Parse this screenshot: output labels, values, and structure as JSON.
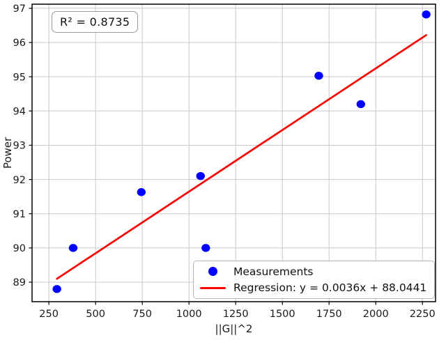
{
  "figure": {
    "background": "#ffffff"
  },
  "chart_data": {
    "type": "scatter",
    "title": "",
    "xlabel": "||G||^2",
    "ylabel": "Power",
    "xlim": [
      160,
      2320
    ],
    "ylim": [
      88.43,
      97.12
    ],
    "xticks": [
      250,
      500,
      750,
      1000,
      1250,
      1500,
      1750,
      2000,
      2250
    ],
    "yticks": [
      89,
      90,
      91,
      92,
      93,
      94,
      95,
      96,
      97
    ],
    "grid": true,
    "grid_color": "#c8c8c8",
    "axis_color": "#000000",
    "tick_label_color": "#1a1a1a",
    "annotation": "R² = 0.8735",
    "r_squared": 0.8735,
    "legend_position": "lower right",
    "series": [
      {
        "name": "Measurements",
        "type": "scatter",
        "color": "#0000ff",
        "points": [
          [
            293,
            88.8
          ],
          [
            380,
            90.0
          ],
          [
            745,
            91.63
          ],
          [
            1062,
            92.1
          ],
          [
            1090,
            90.0
          ],
          [
            1695,
            95.03
          ],
          [
            1920,
            94.2
          ],
          [
            2270,
            96.82
          ]
        ]
      },
      {
        "name": "Regression: y = 0.0036x + 88.0441",
        "type": "line",
        "color": "#ff0000",
        "slope": 0.0036,
        "intercept": 88.0441,
        "x_range": [
          293,
          2270
        ]
      }
    ]
  }
}
